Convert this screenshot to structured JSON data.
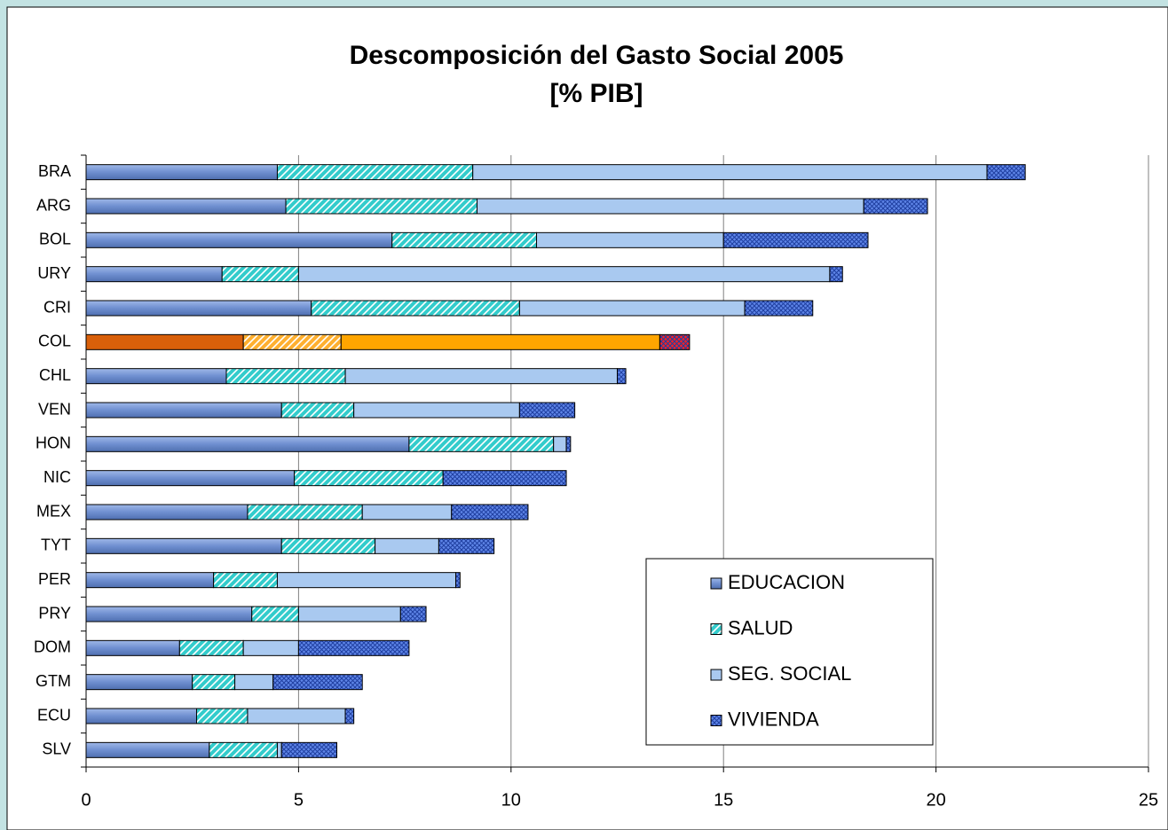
{
  "chart_data": {
    "type": "stacked-barh",
    "title": "Descomposición del Gasto Social 2005",
    "subtitle": "[% PIB]",
    "categories": [
      "BRA",
      "ARG",
      "BOL",
      "URY",
      "CRI",
      "COL",
      "CHL",
      "VEN",
      "HON",
      "NIC",
      "MEX",
      "TYT",
      "PER",
      "PRY",
      "DOM",
      "GTM",
      "ECU",
      "SLV"
    ],
    "series": [
      {
        "name": "EDUCACION",
        "color": "#7b9ad6",
        "pattern": "gradient",
        "values": [
          4.5,
          4.7,
          7.2,
          3.2,
          5.3,
          3.7,
          3.3,
          4.6,
          7.6,
          4.9,
          3.8,
          4.6,
          3.0,
          3.9,
          2.2,
          2.5,
          2.6,
          2.9
        ]
      },
      {
        "name": "SALUD",
        "color": "#33cccc",
        "pattern": "hatch",
        "values": [
          4.6,
          4.5,
          3.4,
          1.8,
          4.9,
          2.3,
          2.8,
          1.7,
          3.4,
          3.5,
          2.7,
          2.2,
          1.5,
          1.1,
          1.5,
          1.0,
          1.2,
          1.6
        ]
      },
      {
        "name": "SEG. SOCIAL",
        "color": "#a9c9f0",
        "pattern": "solid",
        "values": [
          12.1,
          9.1,
          4.4,
          12.5,
          5.3,
          7.5,
          6.4,
          3.9,
          0.3,
          0.0,
          2.1,
          1.5,
          4.2,
          2.4,
          1.3,
          0.9,
          2.3,
          0.1
        ]
      },
      {
        "name": "VIVIENDA",
        "color": "#5f86e8",
        "pattern": "cross",
        "values": [
          0.9,
          1.5,
          3.4,
          0.3,
          1.6,
          0.7,
          0.2,
          1.3,
          0.1,
          2.9,
          1.8,
          1.3,
          0.1,
          0.6,
          2.6,
          2.1,
          0.2,
          1.3
        ]
      }
    ],
    "highlight_index": 5,
    "highlight_colors": [
      "#d9600a",
      "#ffb030",
      "#ffa500",
      "#ff2020"
    ],
    "xlim": [
      0,
      25
    ],
    "xticks": [
      0,
      5,
      10,
      15,
      20,
      25
    ],
    "grid": true,
    "legend": "lower-right"
  }
}
